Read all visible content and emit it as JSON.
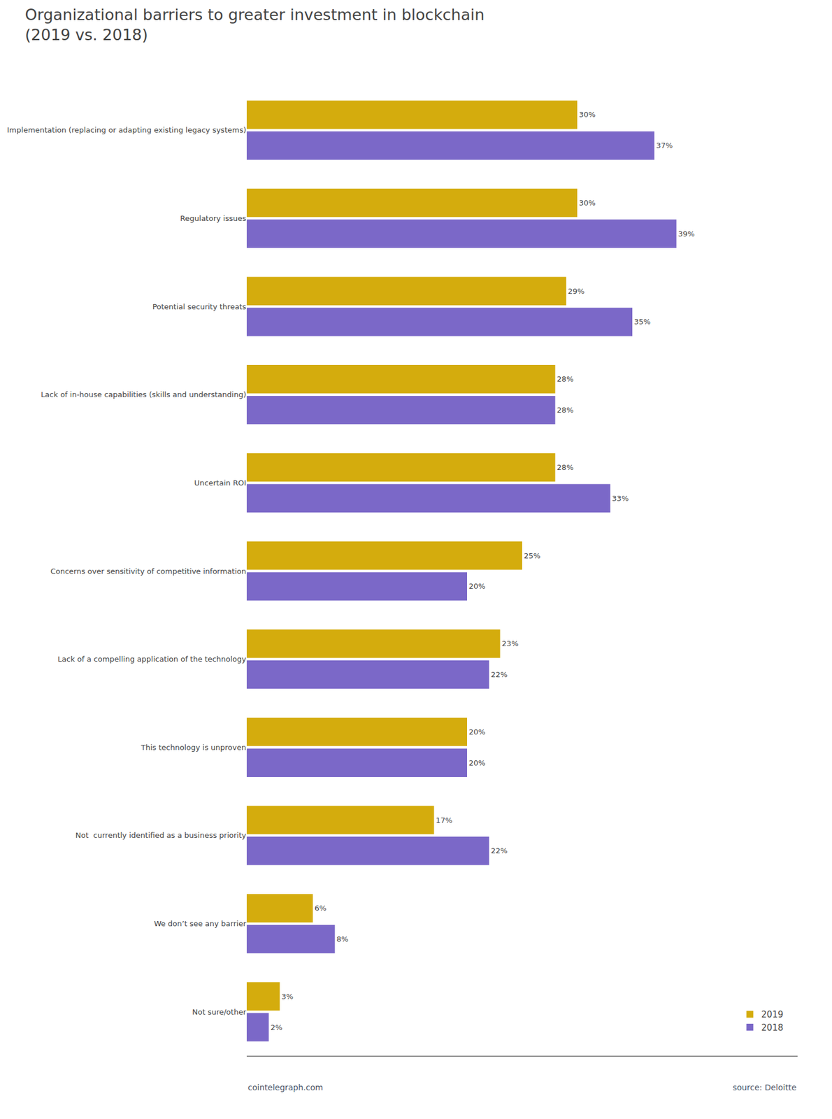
{
  "chart_data": {
    "type": "bar",
    "orientation": "horizontal",
    "title": "Organizational barriers to greater investment in blockchain\n(2019 vs. 2018)",
    "categories": [
      "Implementation (replacing or adapting existing legacy systems)",
      "Regulatory issues",
      "Potential security threats",
      "Lack of in-house capabilities (skills and understanding)",
      "Uncertain ROI",
      "Concerns over sensitivity of competitive information",
      "Lack of a compelling application of the technology",
      "This technology is unproven",
      "Not  currently identified as a business priority",
      "We don’t see any barrier",
      "Not sure/other"
    ],
    "series": [
      {
        "name": "2019",
        "color": "#D4AC0D",
        "values": [
          30,
          30,
          29,
          28,
          28,
          25,
          23,
          20,
          17,
          6,
          3
        ],
        "value_labels": [
          "30%",
          "30%",
          "29%",
          "28%",
          "28%",
          "25%",
          "23%",
          "20%",
          "17%",
          "6%",
          "3%"
        ]
      },
      {
        "name": "2018",
        "color": "#7B68C8",
        "values": [
          37,
          39,
          35,
          28,
          33,
          20,
          22,
          20,
          22,
          8,
          2
        ],
        "value_labels": [
          "37%",
          "39%",
          "35%",
          "28%",
          "33%",
          "20%",
          "22%",
          "20%",
          "22%",
          "8%",
          "2%"
        ]
      }
    ],
    "xlim": [
      0,
      50
    ],
    "data_labels": true,
    "tick_labels": "y",
    "grid": false,
    "legend": "lower right",
    "annotations": [
      "cointelegraph.com",
      "source: Deloitte"
    ]
  }
}
